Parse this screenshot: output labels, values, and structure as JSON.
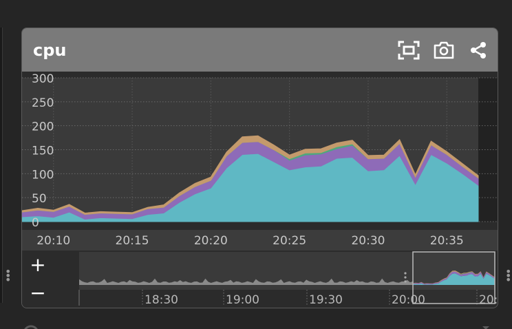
{
  "panel": {
    "title": "cpu",
    "icons": [
      "fullscreen-icon",
      "camera-icon",
      "share-icon"
    ]
  },
  "chart_data": {
    "type": "area",
    "stacked": true,
    "x": [
      "20:08",
      "20:09",
      "20:10",
      "20:11",
      "20:12",
      "20:13",
      "20:14",
      "20:15",
      "20:16",
      "20:17",
      "20:18",
      "20:19",
      "20:20",
      "20:21",
      "20:22",
      "20:23",
      "20:24",
      "20:25",
      "20:26",
      "20:27",
      "20:28",
      "20:29",
      "20:30",
      "20:31",
      "20:32",
      "20:33",
      "20:34",
      "20:35",
      "20:36",
      "20:37"
    ],
    "x_ticks": [
      "20:10",
      "20:15",
      "20:20",
      "20:25",
      "20:30",
      "20:35"
    ],
    "y_ticks": [
      "0",
      "50",
      "100",
      "150",
      "200",
      "250",
      "300"
    ],
    "ylim": [
      0,
      300
    ],
    "grid": true,
    "series": [
      {
        "color": "#5fb8c4",
        "values": [
          10,
          12,
          9,
          20,
          5,
          8,
          7,
          6,
          15,
          18,
          40,
          58,
          70,
          112,
          140,
          142,
          125,
          108,
          114,
          116,
          132,
          134,
          106,
          108,
          138,
          78,
          140,
          122,
          100,
          76
        ]
      },
      {
        "color": "#8e6bb8",
        "values": [
          10,
          12,
          12,
          12,
          10,
          10,
          10,
          10,
          12,
          12,
          14,
          15,
          16,
          25,
          25,
          25,
          25,
          20,
          25,
          25,
          20,
          25,
          25,
          24,
          25,
          15,
          20,
          18,
          15,
          15
        ]
      },
      {
        "color": "#4ea87d",
        "values": [
          0,
          0,
          0,
          0,
          0,
          0,
          0,
          0,
          0,
          0,
          0,
          0,
          0,
          0,
          0,
          0,
          0,
          3,
          4,
          3,
          4,
          3,
          0,
          0,
          0,
          0,
          0,
          0,
          0,
          0
        ]
      },
      {
        "color": "#c49a6c",
        "values": [
          3,
          4,
          3,
          4,
          3,
          3,
          3,
          3,
          3,
          5,
          6,
          7,
          7,
          8,
          12,
          12,
          10,
          8,
          8,
          8,
          8,
          8,
          7,
          7,
          8,
          5,
          8,
          6,
          6,
          5
        ]
      }
    ]
  },
  "navigator": {
    "zoom_in": "+",
    "zoom_out": "−",
    "ticks": [
      "18:30",
      "19:00",
      "19:30",
      "20:00",
      "20:"
    ]
  }
}
